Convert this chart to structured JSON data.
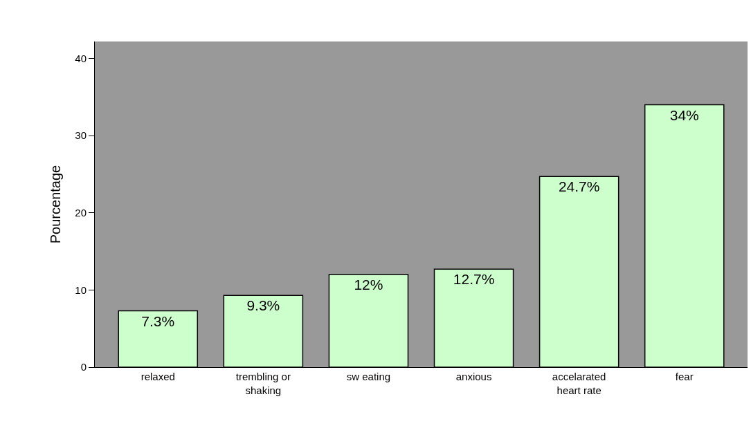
{
  "chart_data": {
    "type": "bar",
    "categories": [
      "relaxed",
      "trembling or shaking",
      "sw eating",
      "anxious",
      "accelarated heart rate",
      "fear"
    ],
    "values": [
      7.3,
      9.3,
      12,
      12.7,
      24.7,
      34
    ],
    "value_labels": [
      "7.3%",
      "9.3%",
      "12%",
      "12.7%",
      "24.7%",
      "34%"
    ],
    "color": "#ccffcc",
    "ylabel": "Pourcentage",
    "ylim": [
      0,
      42.2
    ],
    "yticks": [
      0,
      10,
      20,
      30,
      40
    ],
    "grid": false,
    "legend": false
  }
}
